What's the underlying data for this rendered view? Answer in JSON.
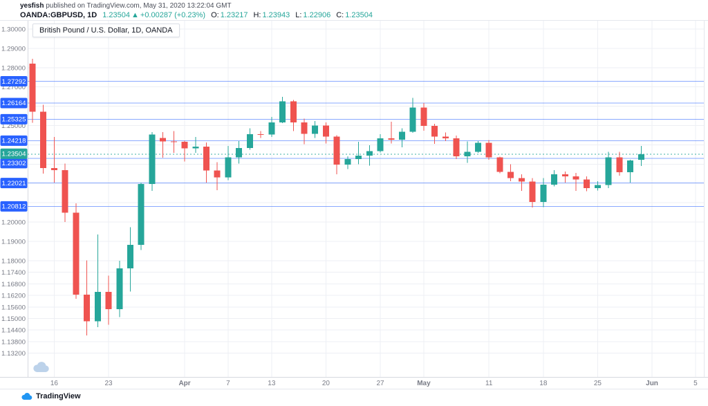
{
  "publish_header": {
    "author": "yesfish",
    "published_text": " published on TradingView.com, May 31, 2020 13:22:04 GMT",
    "symbol_line": {
      "symbol": "OANDA:GBPUSD, 1D",
      "last_price": "1.23504",
      "arrow": "▲",
      "change": "+0.00287 (+0.23%)",
      "open_label": "O:",
      "open": "1.23217",
      "high_label": "H:",
      "high": "1.23943",
      "low_label": "L:",
      "low": "1.22906",
      "close_label": "C:",
      "close": "1.23504"
    }
  },
  "chart": {
    "legend": "British Pound / U.S. Dollar, 1D, OANDA"
  },
  "footer": {
    "brand": "TradingView"
  },
  "icons": {
    "watermark": "tradingview-cloud",
    "footer_logo": "tradingview-cloud"
  },
  "colors": {
    "up": "#26a69a",
    "down": "#ef5350",
    "level_line": "#2962ff",
    "level_badge_bg": "#2962ff",
    "last_badge_bg": "#26a69a",
    "badge_text": "#ffffff",
    "axis_text": "#787b86",
    "grid": "#edeff4",
    "axis_border": "#d6d9e0",
    "frame_border": "#e4e7ed"
  },
  "chart_data": {
    "type": "candlestick",
    "title": "British Pound / U.S. Dollar, 1D, OANDA",
    "symbol": "GBPUSD",
    "timeframe": "1D",
    "xlabel": "",
    "ylabel": "",
    "grid": true,
    "y_range": [
      1.1197,
      1.3043
    ],
    "x_range_dates": "Mar 12, 2020 - Jun 5, 2020",
    "last_candle_ohlc": {
      "o": 1.23217,
      "h": 1.23943,
      "l": 1.22906,
      "c": 1.23504
    },
    "levels": [
      {
        "price": 1.27292,
        "label": "1.27292"
      },
      {
        "price": 1.26164,
        "label": "1.26164"
      },
      {
        "price": 1.25325,
        "label": "1.25325"
      },
      {
        "price": 1.24218,
        "label": "1.24218"
      },
      {
        "price": 1.23302,
        "label": "1.23302",
        "badge_dy": 7
      },
      {
        "price": 1.22021,
        "label": "1.22021"
      },
      {
        "price": 1.20812,
        "label": "1.20812"
      }
    ],
    "last_price": {
      "price": 1.23504,
      "label": "1.23504",
      "badge_dy": -1
    },
    "y_axis_labels": [
      "1.30000",
      "1.29000",
      "1.28000",
      "1.27000",
      "1.25000",
      "1.20000",
      "1.19000",
      "1.18000",
      "1.17400",
      "1.16800",
      "1.16200",
      "1.15600",
      "1.15000",
      "1.14400",
      "1.13800",
      "1.13200"
    ],
    "grid_prices": [
      1.3,
      1.29,
      1.28,
      1.27,
      1.26,
      1.25,
      1.24,
      1.23,
      1.22,
      1.21,
      1.2,
      1.19,
      1.18,
      1.174,
      1.168,
      1.162,
      1.156,
      1.15,
      1.144,
      1.138,
      1.132
    ],
    "x_ticks": [
      {
        "label": "16",
        "index": 2
      },
      {
        "label": "23",
        "index": 7
      },
      {
        "label": "Apr",
        "index": 14,
        "bold": true
      },
      {
        "label": "7",
        "index": 18
      },
      {
        "label": "13",
        "index": 22
      },
      {
        "label": "20",
        "index": 27
      },
      {
        "label": "27",
        "index": 32
      },
      {
        "label": "May",
        "index": 36,
        "bold": true
      },
      {
        "label": "11",
        "index": 42
      },
      {
        "label": "18",
        "index": 47
      },
      {
        "label": "25",
        "index": 52
      },
      {
        "label": "Jun",
        "index": 57,
        "bold": true
      },
      {
        "label": "5",
        "index": 61
      }
    ],
    "candles": [
      {
        "date": "Mar 12",
        "o": 1.2821,
        "h": 1.2846,
        "l": 1.2515,
        "c": 1.2571
      },
      {
        "date": "Mar 13",
        "o": 1.2571,
        "h": 1.2607,
        "l": 1.2251,
        "c": 1.2279
      },
      {
        "date": "Mar 16",
        "o": 1.2279,
        "h": 1.244,
        "l": 1.2204,
        "c": 1.2269
      },
      {
        "date": "Mar 17",
        "o": 1.2269,
        "h": 1.2302,
        "l": 1.2,
        "c": 1.2048
      },
      {
        "date": "Mar 18",
        "o": 1.2048,
        "h": 1.2096,
        "l": 1.1602,
        "c": 1.1623
      },
      {
        "date": "Mar 19",
        "o": 1.1623,
        "h": 1.1801,
        "l": 1.1412,
        "c": 1.1485
      },
      {
        "date": "Mar 20",
        "o": 1.1485,
        "h": 1.1935,
        "l": 1.1455,
        "c": 1.1638
      },
      {
        "date": "Mar 23",
        "o": 1.1638,
        "h": 1.1723,
        "l": 1.1467,
        "c": 1.1548
      },
      {
        "date": "Mar 24",
        "o": 1.1548,
        "h": 1.18,
        "l": 1.1507,
        "c": 1.1759
      },
      {
        "date": "Mar 25",
        "o": 1.1759,
        "h": 1.1974,
        "l": 1.164,
        "c": 1.1882
      },
      {
        "date": "Mar 26",
        "o": 1.1882,
        "h": 1.2205,
        "l": 1.1855,
        "c": 1.2197
      },
      {
        "date": "Mar 27",
        "o": 1.2197,
        "h": 1.2466,
        "l": 1.2161,
        "c": 1.2454
      },
      {
        "date": "Mar 30",
        "o": 1.2436,
        "h": 1.2466,
        "l": 1.2334,
        "c": 1.2418
      },
      {
        "date": "Mar 31",
        "o": 1.2418,
        "h": 1.2472,
        "l": 1.2359,
        "c": 1.2416
      },
      {
        "date": "Apr 1",
        "o": 1.2416,
        "h": 1.2421,
        "l": 1.2314,
        "c": 1.2381
      },
      {
        "date": "Apr 2",
        "o": 1.2381,
        "h": 1.2441,
        "l": 1.2358,
        "c": 1.239
      },
      {
        "date": "Apr 3",
        "o": 1.239,
        "h": 1.2413,
        "l": 1.2205,
        "c": 1.2267
      },
      {
        "date": "Apr 6",
        "o": 1.2267,
        "h": 1.231,
        "l": 1.2164,
        "c": 1.2232
      },
      {
        "date": "Apr 7",
        "o": 1.2232,
        "h": 1.2395,
        "l": 1.2216,
        "c": 1.2335
      },
      {
        "date": "Apr 8",
        "o": 1.2335,
        "h": 1.242,
        "l": 1.2303,
        "c": 1.2383
      },
      {
        "date": "Apr 9",
        "o": 1.2383,
        "h": 1.2485,
        "l": 1.2374,
        "c": 1.2456
      },
      {
        "date": "Apr 10",
        "o": 1.2456,
        "h": 1.2471,
        "l": 1.2436,
        "c": 1.2454
      },
      {
        "date": "Apr 13",
        "o": 1.2454,
        "h": 1.2545,
        "l": 1.244,
        "c": 1.2516
      },
      {
        "date": "Apr 14",
        "o": 1.2516,
        "h": 1.2648,
        "l": 1.2513,
        "c": 1.2626
      },
      {
        "date": "Apr 15",
        "o": 1.2626,
        "h": 1.2632,
        "l": 1.2471,
        "c": 1.2516
      },
      {
        "date": "Apr 16",
        "o": 1.2516,
        "h": 1.2536,
        "l": 1.2404,
        "c": 1.2457
      },
      {
        "date": "Apr 17",
        "o": 1.2457,
        "h": 1.2523,
        "l": 1.2436,
        "c": 1.25
      },
      {
        "date": "Apr 20",
        "o": 1.25,
        "h": 1.2517,
        "l": 1.2406,
        "c": 1.2442
      },
      {
        "date": "Apr 21",
        "o": 1.2442,
        "h": 1.2449,
        "l": 1.2247,
        "c": 1.2297
      },
      {
        "date": "Apr 22",
        "o": 1.2297,
        "h": 1.234,
        "l": 1.2275,
        "c": 1.2326
      },
      {
        "date": "Apr 23",
        "o": 1.2326,
        "h": 1.2415,
        "l": 1.23,
        "c": 1.2344
      },
      {
        "date": "Apr 24",
        "o": 1.2344,
        "h": 1.2397,
        "l": 1.2292,
        "c": 1.2367
      },
      {
        "date": "Apr 27",
        "o": 1.2367,
        "h": 1.2455,
        "l": 1.236,
        "c": 1.2433
      },
      {
        "date": "Apr 28",
        "o": 1.2433,
        "h": 1.2519,
        "l": 1.2406,
        "c": 1.2427
      },
      {
        "date": "Apr 29",
        "o": 1.2427,
        "h": 1.2485,
        "l": 1.2387,
        "c": 1.2468
      },
      {
        "date": "Apr 30",
        "o": 1.2468,
        "h": 1.2643,
        "l": 1.2462,
        "c": 1.2593
      },
      {
        "date": "May 1",
        "o": 1.2593,
        "h": 1.2617,
        "l": 1.2474,
        "c": 1.2499
      },
      {
        "date": "May 4",
        "o": 1.2499,
        "h": 1.2509,
        "l": 1.2405,
        "c": 1.2443
      },
      {
        "date": "May 5",
        "o": 1.2443,
        "h": 1.2465,
        "l": 1.2419,
        "c": 1.2434
      },
      {
        "date": "May 6",
        "o": 1.2434,
        "h": 1.2448,
        "l": 1.2327,
        "c": 1.234
      },
      {
        "date": "May 7",
        "o": 1.234,
        "h": 1.2418,
        "l": 1.2306,
        "c": 1.2363
      },
      {
        "date": "May 8",
        "o": 1.2363,
        "h": 1.242,
        "l": 1.2359,
        "c": 1.241
      },
      {
        "date": "May 11",
        "o": 1.241,
        "h": 1.2424,
        "l": 1.2323,
        "c": 1.2336
      },
      {
        "date": "May 12",
        "o": 1.2336,
        "h": 1.2338,
        "l": 1.2252,
        "c": 1.2259
      },
      {
        "date": "May 13",
        "o": 1.2259,
        "h": 1.23,
        "l": 1.2211,
        "c": 1.2228
      },
      {
        "date": "May 14",
        "o": 1.2228,
        "h": 1.2247,
        "l": 1.2161,
        "c": 1.221
      },
      {
        "date": "May 15",
        "o": 1.221,
        "h": 1.2227,
        "l": 1.2075,
        "c": 1.2104
      },
      {
        "date": "May 18",
        "o": 1.2104,
        "h": 1.2228,
        "l": 1.2077,
        "c": 1.2194
      },
      {
        "date": "May 19",
        "o": 1.2194,
        "h": 1.2269,
        "l": 1.2184,
        "c": 1.2248
      },
      {
        "date": "May 20",
        "o": 1.2248,
        "h": 1.2262,
        "l": 1.2205,
        "c": 1.2237
      },
      {
        "date": "May 21",
        "o": 1.2237,
        "h": 1.2255,
        "l": 1.2161,
        "c": 1.222
      },
      {
        "date": "May 22",
        "o": 1.222,
        "h": 1.2237,
        "l": 1.2159,
        "c": 1.2175
      },
      {
        "date": "May 25",
        "o": 1.2175,
        "h": 1.2212,
        "l": 1.2163,
        "c": 1.2192
      },
      {
        "date": "May 26",
        "o": 1.2192,
        "h": 1.2364,
        "l": 1.2176,
        "c": 1.2335
      },
      {
        "date": "May 27",
        "o": 1.2335,
        "h": 1.2363,
        "l": 1.2241,
        "c": 1.2258
      },
      {
        "date": "May 28",
        "o": 1.2258,
        "h": 1.2323,
        "l": 1.2205,
        "c": 1.2319
      },
      {
        "date": "May 29",
        "o": 1.23217,
        "h": 1.23943,
        "l": 1.22906,
        "c": 1.23504
      }
    ]
  }
}
